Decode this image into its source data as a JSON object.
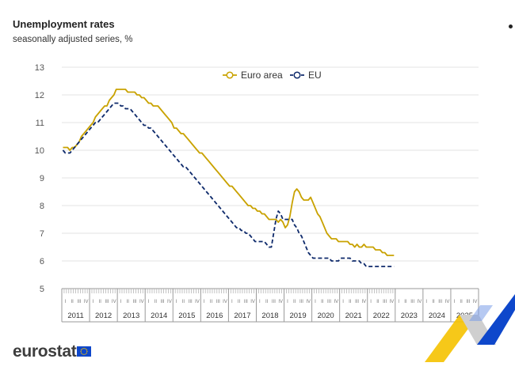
{
  "header": {
    "title": "Unemployment rates",
    "subtitle": "seasonally adjusted series, %"
  },
  "menu_icon": "more-options-icon",
  "brand": {
    "name": "eurostat",
    "flag_icon": "eu-flag-icon"
  },
  "colors": {
    "euro_area": "#c9a200",
    "eu": "#0e2a6b",
    "grid": "#e3e3e3",
    "axis_text": "#555555",
    "brand_blue": "#0e47cb",
    "brand_yellow": "#f5c200"
  },
  "chart_data": {
    "type": "line",
    "title": "Unemployment rates",
    "subtitle": "seasonally adjusted series, %",
    "xlabel": "",
    "ylabel": "",
    "ylim": [
      5,
      13
    ],
    "yticks": [
      5,
      6,
      7,
      8,
      9,
      10,
      11,
      12,
      13
    ],
    "grid": true,
    "legend_position": "top-center",
    "x_start": "2011-01",
    "frequency": "monthly",
    "quarter_labels": [
      "I",
      "II",
      "III",
      "IV"
    ],
    "year_labels": [
      "2011",
      "2012",
      "2013",
      "2014",
      "2015",
      "2016",
      "2017",
      "2018",
      "2019",
      "2020",
      "2021",
      "2022",
      "2023",
      "2024",
      "2025"
    ],
    "series": [
      {
        "name": "Euro area",
        "style": "solid",
        "values": [
          10.1,
          10.1,
          10.1,
          10.0,
          10.1,
          10.1,
          10.2,
          10.3,
          10.5,
          10.6,
          10.7,
          10.8,
          10.9,
          11.0,
          11.2,
          11.3,
          11.4,
          11.5,
          11.6,
          11.6,
          11.8,
          11.9,
          12.0,
          12.2,
          12.2,
          12.2,
          12.2,
          12.2,
          12.1,
          12.1,
          12.1,
          12.1,
          12.0,
          12.0,
          11.9,
          11.9,
          11.8,
          11.7,
          11.7,
          11.6,
          11.6,
          11.6,
          11.5,
          11.4,
          11.3,
          11.2,
          11.1,
          11.0,
          10.8,
          10.8,
          10.7,
          10.6,
          10.6,
          10.5,
          10.4,
          10.3,
          10.2,
          10.1,
          10.0,
          9.9,
          9.9,
          9.8,
          9.7,
          9.6,
          9.5,
          9.4,
          9.3,
          9.2,
          9.1,
          9.0,
          8.9,
          8.8,
          8.7,
          8.7,
          8.6,
          8.5,
          8.4,
          8.3,
          8.2,
          8.1,
          8.0,
          8.0,
          7.9,
          7.9,
          7.8,
          7.8,
          7.7,
          7.7,
          7.6,
          7.5,
          7.5,
          7.5,
          7.5,
          7.4,
          7.5,
          7.4,
          7.2,
          7.3,
          7.6,
          8.1,
          8.5,
          8.6,
          8.5,
          8.3,
          8.2,
          8.2,
          8.2,
          8.3,
          8.1,
          7.9,
          7.7,
          7.6,
          7.4,
          7.2,
          7.0,
          6.9,
          6.8,
          6.8,
          6.8,
          6.7,
          6.7,
          6.7,
          6.7,
          6.7,
          6.6,
          6.6,
          6.5,
          6.6,
          6.5,
          6.5,
          6.6,
          6.5,
          6.5,
          6.5,
          6.5,
          6.4,
          6.4,
          6.4,
          6.3,
          6.3,
          6.2,
          6.2,
          6.2,
          6.2
        ]
      },
      {
        "name": "EU",
        "style": "dashed",
        "values": [
          10.0,
          9.9,
          9.9,
          9.9,
          10.0,
          10.1,
          10.2,
          10.3,
          10.4,
          10.5,
          10.6,
          10.7,
          10.8,
          10.9,
          11.0,
          11.0,
          11.1,
          11.2,
          11.3,
          11.4,
          11.5,
          11.6,
          11.7,
          11.7,
          11.7,
          11.6,
          11.6,
          11.5,
          11.5,
          11.5,
          11.4,
          11.3,
          11.2,
          11.1,
          11.0,
          10.9,
          10.9,
          10.8,
          10.8,
          10.7,
          10.6,
          10.5,
          10.4,
          10.3,
          10.2,
          10.1,
          10.0,
          9.9,
          9.8,
          9.7,
          9.6,
          9.5,
          9.4,
          9.4,
          9.3,
          9.2,
          9.1,
          9.0,
          8.9,
          8.8,
          8.7,
          8.6,
          8.5,
          8.4,
          8.3,
          8.2,
          8.1,
          8.0,
          7.9,
          7.8,
          7.7,
          7.6,
          7.5,
          7.4,
          7.3,
          7.2,
          7.2,
          7.1,
          7.1,
          7.0,
          7.0,
          6.9,
          6.8,
          6.7,
          6.7,
          6.7,
          6.7,
          6.7,
          6.6,
          6.5,
          6.5,
          7.0,
          7.5,
          7.8,
          7.7,
          7.5,
          7.5,
          7.5,
          7.5,
          7.5,
          7.3,
          7.2,
          7.0,
          6.9,
          6.7,
          6.5,
          6.3,
          6.2,
          6.1,
          6.1,
          6.1,
          6.1,
          6.1,
          6.1,
          6.1,
          6.1,
          6.0,
          6.0,
          6.0,
          6.0,
          6.1,
          6.1,
          6.1,
          6.1,
          6.1,
          6.0,
          6.0,
          6.0,
          6.0,
          5.9,
          5.9,
          5.8,
          5.8,
          5.8,
          5.8,
          5.8,
          5.8,
          5.8,
          5.8,
          5.8,
          5.8,
          5.8,
          5.8,
          5.8
        ]
      }
    ]
  }
}
